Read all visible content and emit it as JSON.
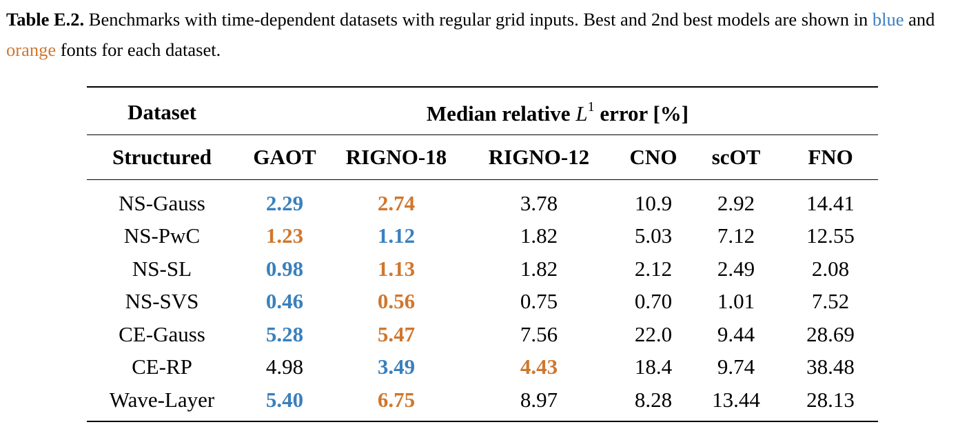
{
  "caption": {
    "label": "Table E.2.",
    "text_1": " Benchmarks with time-dependent datasets with regular grid inputs. Best and 2nd best models are shown in ",
    "blue_word": "blue",
    "text_2": " and ",
    "orange_word": "orange",
    "text_3": " fonts for each dataset."
  },
  "colors": {
    "best": "#3a80bd",
    "second_best": "#cf772f"
  },
  "table": {
    "header_top": {
      "dataset": "Dataset",
      "metric_prefix": "Median relative ",
      "metric_symbol": "L",
      "metric_sup": "1",
      "metric_suffix": " error [%]"
    },
    "columns": [
      "Structured",
      "GAOT",
      "RIGNO-18",
      "RIGNO-12",
      "CNO",
      "scOT",
      "FNO"
    ],
    "rows": [
      {
        "name": "NS-Gauss",
        "values": [
          "2.29",
          "2.74",
          "3.78",
          "10.9",
          "2.92",
          "14.41"
        ],
        "highlight": [
          "best",
          "second",
          "",
          "",
          "",
          ""
        ]
      },
      {
        "name": "NS-PwC",
        "values": [
          "1.23",
          "1.12",
          "1.82",
          "5.03",
          "7.12",
          "12.55"
        ],
        "highlight": [
          "second",
          "best",
          "",
          "",
          "",
          ""
        ]
      },
      {
        "name": "NS-SL",
        "values": [
          "0.98",
          "1.13",
          "1.82",
          "2.12",
          "2.49",
          "2.08"
        ],
        "highlight": [
          "best",
          "second",
          "",
          "",
          "",
          ""
        ]
      },
      {
        "name": "NS-SVS",
        "values": [
          "0.46",
          "0.56",
          "0.75",
          "0.70",
          "1.01",
          "7.52"
        ],
        "highlight": [
          "best",
          "second",
          "",
          "",
          "",
          ""
        ]
      },
      {
        "name": "CE-Gauss",
        "values": [
          "5.28",
          "5.47",
          "7.56",
          "22.0",
          "9.44",
          "28.69"
        ],
        "highlight": [
          "best",
          "second",
          "",
          "",
          "",
          ""
        ]
      },
      {
        "name": "CE-RP",
        "values": [
          "4.98",
          "3.49",
          "4.43",
          "18.4",
          "9.74",
          "38.48"
        ],
        "highlight": [
          "",
          "best",
          "second",
          "",
          "",
          ""
        ]
      },
      {
        "name": "Wave-Layer",
        "values": [
          "5.40",
          "6.75",
          "8.97",
          "8.28",
          "13.44",
          "28.13"
        ],
        "highlight": [
          "best",
          "second",
          "",
          "",
          "",
          ""
        ]
      }
    ]
  }
}
